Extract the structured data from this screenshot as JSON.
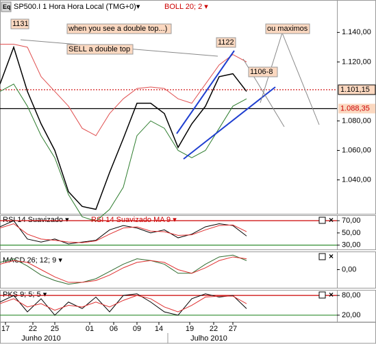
{
  "logo": "Eq",
  "chart_data": [
    {
      "type": "line",
      "title": "SP500.I 1 Hora Hora Local (TMG+0)▾",
      "subtitle": "BOLL 20; 2 ▾",
      "xlim": [
        0,
        49.2
      ],
      "x": [
        0,
        2,
        4,
        6,
        8,
        10,
        12,
        14,
        16,
        18,
        20,
        22,
        24,
        26,
        28,
        30,
        32,
        34,
        36
      ],
      "ylim": [
        1017,
        1162
      ],
      "yticks": [
        {
          "value": 1040,
          "label": "1.040,00"
        },
        {
          "value": 1060,
          "label": "1.060,00"
        },
        {
          "value": 1080,
          "label": "1.080,00"
        },
        {
          "value": 1120,
          "label": "1.120,00"
        },
        {
          "value": 1140,
          "label": "1.140,00"
        }
      ],
      "series": [
        {
          "color": "#000000",
          "values": [
            1105,
            1130,
            1100,
            1078,
            1060,
            1032,
            1022,
            1020,
            1045,
            1068,
            1092,
            1092,
            1085,
            1062,
            1078,
            1090,
            1110,
            1112,
            1100
          ]
        },
        {
          "color": "#e05050",
          "values": [
            1132,
            1132,
            1130,
            1110,
            1100,
            1090,
            1075,
            1070,
            1085,
            1095,
            1102,
            1103,
            1102,
            1095,
            1092,
            1105,
            1118,
            1125,
            1120
          ]
        },
        {
          "color": "#2e7d2e",
          "values": [
            1100,
            1105,
            1090,
            1070,
            1055,
            1030,
            1015,
            1012,
            1020,
            1035,
            1070,
            1080,
            1075,
            1060,
            1055,
            1060,
            1075,
            1090,
            1095
          ]
        }
      ],
      "levels": [
        {
          "value": 1101.15,
          "label": "1.101,15",
          "color": "#cc0000"
        },
        {
          "value": 1088.35,
          "label": "1.088,35",
          "color": "#000000"
        }
      ],
      "annotations": [
        "1131",
        "when you see a double top...)",
        "SELL a double top",
        "1122",
        "ou maximos",
        "1106-8"
      ]
    },
    {
      "type": "line",
      "xlim": [
        0,
        49.2
      ],
      "x": [
        0,
        2,
        4,
        6,
        8,
        10,
        12,
        14,
        16,
        18,
        20,
        22,
        24,
        26,
        28,
        30,
        32,
        34,
        36
      ],
      "ylim": [
        23,
        79
      ],
      "yticks": [
        {
          "value": 30,
          "label": "30,00"
        },
        {
          "value": 50,
          "label": "50,00"
        },
        {
          "value": 70,
          "label": "70,00"
        }
      ],
      "series": [
        {
          "name": "RSI 14 Suavizado ▾",
          "color": "#000000",
          "values": [
            60,
            70,
            40,
            35,
            40,
            32,
            35,
            38,
            55,
            62,
            58,
            50,
            55,
            42,
            48,
            60,
            65,
            62,
            45
          ]
        },
        {
          "name": "RSI 14 Suavizado MA 9 ▾",
          "color": "#e03030",
          "values": [
            58,
            65,
            48,
            40,
            38,
            35,
            34,
            37,
            48,
            58,
            60,
            53,
            52,
            46,
            47,
            55,
            62,
            63,
            52
          ]
        }
      ],
      "levels": [
        {
          "value": 70,
          "color": "#cc0000"
        },
        {
          "value": 30,
          "color": "#2e8b2e"
        }
      ]
    },
    {
      "type": "line",
      "title": "MACD 26; 12; 9 ▾",
      "xlim": [
        0,
        49.2
      ],
      "x": [
        0,
        2,
        4,
        6,
        8,
        10,
        12,
        14,
        16,
        18,
        20,
        22,
        24,
        26,
        28,
        30,
        32,
        34,
        36
      ],
      "ylim": [
        -10,
        10
      ],
      "yticks": [
        {
          "value": 0,
          "label": "0,00"
        }
      ],
      "series": [
        {
          "color": "#2e6b2e",
          "values": [
            4,
            6,
            2,
            -3,
            -6,
            -8,
            -7,
            -5,
            -1,
            3,
            6,
            5,
            3,
            -2,
            -2,
            3,
            7,
            8,
            5
          ]
        },
        {
          "color": "#e03030",
          "values": [
            3,
            5,
            4,
            0,
            -4,
            -7,
            -7,
            -6,
            -3,
            1,
            4,
            5,
            4,
            0,
            -2,
            1,
            5,
            7,
            6
          ]
        }
      ]
    },
    {
      "type": "line",
      "title": "PKS 9; 5; 5 ▾",
      "xlim": [
        0,
        49.2
      ],
      "x": [
        0,
        2,
        4,
        6,
        8,
        10,
        12,
        14,
        16,
        18,
        20,
        22,
        24,
        26,
        28,
        30,
        32,
        34,
        36
      ],
      "ylim": [
        -1,
        97
      ],
      "yticks": [
        {
          "value": 20,
          "label": "20,00"
        },
        {
          "value": 80,
          "label": "80,00"
        }
      ],
      "series": [
        {
          "color": "#000000",
          "values": [
            60,
            80,
            30,
            70,
            20,
            60,
            40,
            75,
            30,
            80,
            85,
            60,
            30,
            20,
            70,
            85,
            75,
            80,
            40
          ]
        },
        {
          "color": "#e03030",
          "values": [
            55,
            70,
            45,
            55,
            35,
            50,
            45,
            60,
            45,
            65,
            80,
            70,
            45,
            30,
            50,
            75,
            78,
            78,
            55
          ]
        }
      ],
      "levels": [
        {
          "value": 80,
          "color": "#cc0000"
        },
        {
          "value": 20,
          "color": "#2e8b2e"
        }
      ],
      "xticks": [
        {
          "value": 0.8,
          "label": "17"
        },
        {
          "value": 4.8,
          "label": "22"
        },
        {
          "value": 8,
          "label": "25"
        },
        {
          "value": 13.1,
          "label": "01"
        },
        {
          "value": 16.6,
          "label": "06"
        },
        {
          "value": 20,
          "label": "09"
        },
        {
          "value": 23.2,
          "label": "14"
        },
        {
          "value": 27.7,
          "label": "19"
        },
        {
          "value": 31.2,
          "label": "22"
        },
        {
          "value": 34,
          "label": "27"
        }
      ],
      "months": [
        {
          "value": 6,
          "label": "Junho 2010"
        },
        {
          "value": 30.5,
          "label": "Julho 2010"
        }
      ]
    }
  ]
}
